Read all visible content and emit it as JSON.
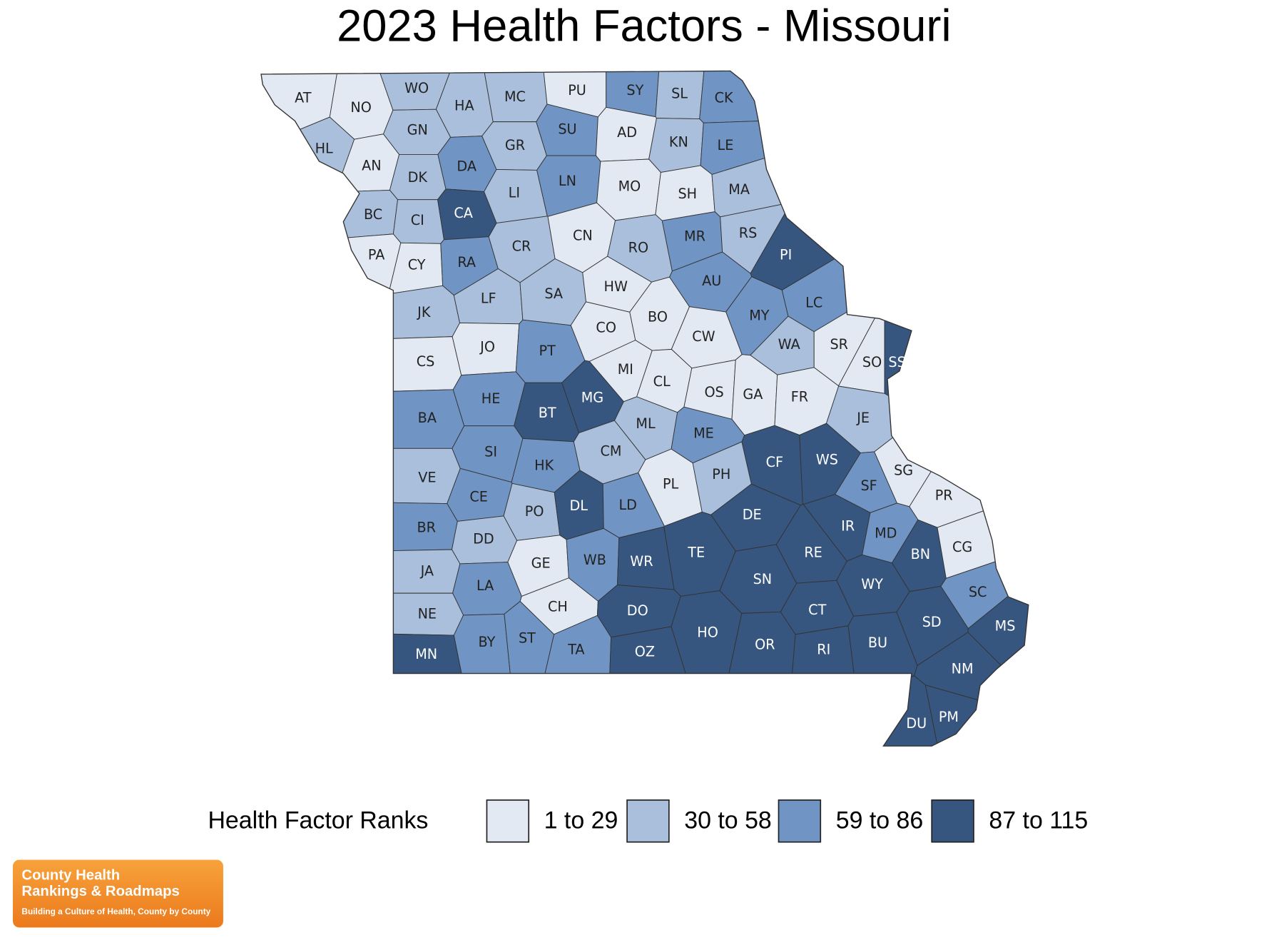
{
  "title": "2023 Health Factors - Missouri",
  "legend": {
    "title": "Health Factor Ranks",
    "items": [
      {
        "label": "1 to 29",
        "color": "#e3e9f3"
      },
      {
        "label": "30 to 58",
        "color": "#a9bfdc"
      },
      {
        "label": "59 to 86",
        "color": "#7094c4"
      },
      {
        "label": "87 to 115",
        "color": "#36557f"
      }
    ]
  },
  "counties": [
    {
      "code": "AT",
      "rank_group": 0
    },
    {
      "code": "NO",
      "rank_group": 0
    },
    {
      "code": "WO",
      "rank_group": 1
    },
    {
      "code": "HA",
      "rank_group": 1
    },
    {
      "code": "MC",
      "rank_group": 1
    },
    {
      "code": "PU",
      "rank_group": 0
    },
    {
      "code": "SY",
      "rank_group": 2
    },
    {
      "code": "SL",
      "rank_group": 1
    },
    {
      "code": "CK",
      "rank_group": 2
    },
    {
      "code": "HL",
      "rank_group": 1
    },
    {
      "code": "AN",
      "rank_group": 0
    },
    {
      "code": "GN",
      "rank_group": 1
    },
    {
      "code": "DK",
      "rank_group": 1
    },
    {
      "code": "DA",
      "rank_group": 2
    },
    {
      "code": "GR",
      "rank_group": 1
    },
    {
      "code": "SU",
      "rank_group": 2
    },
    {
      "code": "AD",
      "rank_group": 0
    },
    {
      "code": "KN",
      "rank_group": 1
    },
    {
      "code": "LE",
      "rank_group": 2
    },
    {
      "code": "BC",
      "rank_group": 1
    },
    {
      "code": "CI",
      "rank_group": 1
    },
    {
      "code": "CA",
      "rank_group": 3
    },
    {
      "code": "LI",
      "rank_group": 1
    },
    {
      "code": "LN",
      "rank_group": 2
    },
    {
      "code": "MO",
      "rank_group": 0
    },
    {
      "code": "SH",
      "rank_group": 0
    },
    {
      "code": "MA",
      "rank_group": 1
    },
    {
      "code": "PA",
      "rank_group": 0
    },
    {
      "code": "CY",
      "rank_group": 0
    },
    {
      "code": "RA",
      "rank_group": 2
    },
    {
      "code": "CR",
      "rank_group": 1
    },
    {
      "code": "CN",
      "rank_group": 0
    },
    {
      "code": "RO",
      "rank_group": 1
    },
    {
      "code": "MR",
      "rank_group": 2
    },
    {
      "code": "RS",
      "rank_group": 1
    },
    {
      "code": "PI",
      "rank_group": 3
    },
    {
      "code": "JK",
      "rank_group": 1
    },
    {
      "code": "LF",
      "rank_group": 1
    },
    {
      "code": "SA",
      "rank_group": 1
    },
    {
      "code": "HW",
      "rank_group": 0
    },
    {
      "code": "BO",
      "rank_group": 0
    },
    {
      "code": "AU",
      "rank_group": 2
    },
    {
      "code": "MY",
      "rank_group": 2
    },
    {
      "code": "LC",
      "rank_group": 2
    },
    {
      "code": "CS",
      "rank_group": 0
    },
    {
      "code": "JO",
      "rank_group": 0
    },
    {
      "code": "PT",
      "rank_group": 2
    },
    {
      "code": "CO",
      "rank_group": 0
    },
    {
      "code": "CW",
      "rank_group": 0
    },
    {
      "code": "WA",
      "rank_group": 1
    },
    {
      "code": "SR",
      "rank_group": 0
    },
    {
      "code": "SO",
      "rank_group": 0
    },
    {
      "code": "SS",
      "rank_group": 3
    },
    {
      "code": "MI",
      "rank_group": 0
    },
    {
      "code": "CL",
      "rank_group": 0
    },
    {
      "code": "OS",
      "rank_group": 0
    },
    {
      "code": "GA",
      "rank_group": 0
    },
    {
      "code": "FR",
      "rank_group": 0
    },
    {
      "code": "JE",
      "rank_group": 1
    },
    {
      "code": "BA",
      "rank_group": 2
    },
    {
      "code": "HE",
      "rank_group": 2
    },
    {
      "code": "BT",
      "rank_group": 3
    },
    {
      "code": "MG",
      "rank_group": 3
    },
    {
      "code": "ML",
      "rank_group": 1
    },
    {
      "code": "ME",
      "rank_group": 2
    },
    {
      "code": "VE",
      "rank_group": 1
    },
    {
      "code": "SI",
      "rank_group": 2
    },
    {
      "code": "HK",
      "rank_group": 2
    },
    {
      "code": "CM",
      "rank_group": 1
    },
    {
      "code": "CF",
      "rank_group": 3
    },
    {
      "code": "WS",
      "rank_group": 3
    },
    {
      "code": "SF",
      "rank_group": 2
    },
    {
      "code": "SG",
      "rank_group": 0
    },
    {
      "code": "CE",
      "rank_group": 2
    },
    {
      "code": "PO",
      "rank_group": 1
    },
    {
      "code": "DL",
      "rank_group": 3
    },
    {
      "code": "LD",
      "rank_group": 2
    },
    {
      "code": "PL",
      "rank_group": 0
    },
    {
      "code": "PH",
      "rank_group": 1
    },
    {
      "code": "DE",
      "rank_group": 3
    },
    {
      "code": "PR",
      "rank_group": 0
    },
    {
      "code": "BR",
      "rank_group": 2
    },
    {
      "code": "DD",
      "rank_group": 1
    },
    {
      "code": "IR",
      "rank_group": 3
    },
    {
      "code": "MD",
      "rank_group": 2
    },
    {
      "code": "BN",
      "rank_group": 3
    },
    {
      "code": "CG",
      "rank_group": 0
    },
    {
      "code": "JA",
      "rank_group": 1
    },
    {
      "code": "GE",
      "rank_group": 0
    },
    {
      "code": "WB",
      "rank_group": 2
    },
    {
      "code": "WR",
      "rank_group": 3
    },
    {
      "code": "TE",
      "rank_group": 3
    },
    {
      "code": "SN",
      "rank_group": 3
    },
    {
      "code": "RE",
      "rank_group": 3
    },
    {
      "code": "WY",
      "rank_group": 3
    },
    {
      "code": "SC",
      "rank_group": 2
    },
    {
      "code": "LA",
      "rank_group": 2
    },
    {
      "code": "CH",
      "rank_group": 0
    },
    {
      "code": "DO",
      "rank_group": 3
    },
    {
      "code": "CT",
      "rank_group": 3
    },
    {
      "code": "SD",
      "rank_group": 3
    },
    {
      "code": "MS",
      "rank_group": 3
    },
    {
      "code": "NE",
      "rank_group": 1
    },
    {
      "code": "BY",
      "rank_group": 2
    },
    {
      "code": "ST",
      "rank_group": 2
    },
    {
      "code": "TA",
      "rank_group": 2
    },
    {
      "code": "OZ",
      "rank_group": 3
    },
    {
      "code": "HO",
      "rank_group": 3
    },
    {
      "code": "OR",
      "rank_group": 3
    },
    {
      "code": "RI",
      "rank_group": 3
    },
    {
      "code": "BU",
      "rank_group": 3
    },
    {
      "code": "MN",
      "rank_group": 3
    },
    {
      "code": "NM",
      "rank_group": 3
    },
    {
      "code": "PM",
      "rank_group": 3
    },
    {
      "code": "DU",
      "rank_group": 3
    }
  ],
  "logo": {
    "line1": "County Health",
    "line2": "Rankings & Roadmaps",
    "tagline": "Building a Culture of Health, County by County"
  }
}
